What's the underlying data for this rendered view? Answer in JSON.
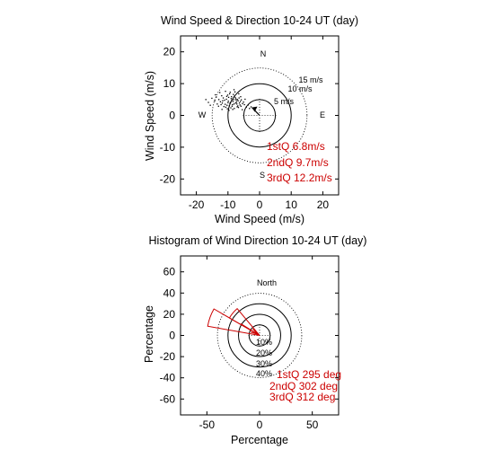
{
  "chart_data": [
    {
      "type": "scatter",
      "title": "Wind Speed & Direction 10-24 UT (day)",
      "xlabel": "Wind Speed (m/s)",
      "ylabel": "Wind Speed (m/s)",
      "xlim": [
        -25,
        25
      ],
      "ylim": [
        -25,
        25
      ],
      "xticks": [
        "-20",
        "-10",
        "0",
        "10",
        "20"
      ],
      "yticks": [
        "20",
        "10",
        "0",
        "-10",
        "-20"
      ],
      "xtick_values": [
        -20,
        -10,
        0,
        10,
        20
      ],
      "ytick_values": [
        20,
        10,
        0,
        -10,
        -20
      ],
      "rings": [
        {
          "radius": 5,
          "label": "5 m/s",
          "style": "solid"
        },
        {
          "radius": 10,
          "label": "10 m/s",
          "style": "solid"
        },
        {
          "radius": 15,
          "label": "15 m/s",
          "style": "dotted"
        }
      ],
      "compass": {
        "N": "N",
        "S": "S",
        "E": "E",
        "W": "W"
      },
      "mean_vector": [
        -2.4,
        2.5
      ],
      "points": [
        [
          -9.2,
          4.1
        ],
        [
          -8.1,
          3.6
        ],
        [
          -7.5,
          5.2
        ],
        [
          -10.3,
          3.2
        ],
        [
          -6.8,
          4.6
        ],
        [
          -8.7,
          2.9
        ],
        [
          -11.1,
          4.8
        ],
        [
          -7.9,
          6.1
        ],
        [
          -9.8,
          5.7
        ],
        [
          -6.2,
          3.3
        ],
        [
          -8.4,
          4.4
        ],
        [
          -10.7,
          2.6
        ],
        [
          -7.1,
          2.7
        ],
        [
          -9.4,
          3.8
        ],
        [
          -5.8,
          4.9
        ],
        [
          -8.9,
          5.9
        ],
        [
          -11.8,
          3.9
        ],
        [
          -7.6,
          3.9
        ],
        [
          -6.5,
          5.5
        ],
        [
          -9.9,
          4.5
        ],
        [
          -8.2,
          5.0
        ],
        [
          -10.1,
          6.4
        ],
        [
          -12.4,
          4.3
        ],
        [
          -7.3,
          4.2
        ],
        [
          -6.9,
          3.0
        ],
        [
          -9.1,
          2.4
        ],
        [
          -8.6,
          3.4
        ],
        [
          -10.5,
          5.1
        ],
        [
          -5.4,
          3.7
        ],
        [
          -11.5,
          5.5
        ],
        [
          -7.7,
          5.6
        ],
        [
          -9.5,
          6.8
        ],
        [
          -6.1,
          4.4
        ],
        [
          -8.0,
          2.2
        ],
        [
          -10.9,
          3.5
        ],
        [
          -7.2,
          3.6
        ],
        [
          -12.9,
          5.0
        ],
        [
          -9.6,
          3.0
        ],
        [
          -8.3,
          6.6
        ],
        [
          -6.7,
          2.5
        ],
        [
          -13.4,
          3.6
        ],
        [
          -10.0,
          4.0
        ],
        [
          -7.4,
          4.8
        ],
        [
          -9.0,
          5.3
        ],
        [
          -5.9,
          2.9
        ],
        [
          -11.3,
          2.8
        ],
        [
          -8.8,
          4.7
        ],
        [
          -6.4,
          3.9
        ],
        [
          -10.4,
          6.0
        ],
        [
          -7.0,
          5.0
        ],
        [
          -14.2,
          4.6
        ],
        [
          -12.0,
          6.2
        ],
        [
          -9.3,
          7.3
        ],
        [
          -4.8,
          3.4
        ],
        [
          -6.0,
          5.9
        ],
        [
          -11.7,
          4.6
        ],
        [
          -8.5,
          1.9
        ],
        [
          -13.0,
          2.9
        ],
        [
          -15.1,
          5.4
        ],
        [
          -4.2,
          2.6
        ],
        [
          -3.6,
          3.3
        ],
        [
          -5.1,
          4.2
        ],
        [
          -12.6,
          7.2
        ],
        [
          -16.2,
          4.1
        ],
        [
          -14.0,
          6.5
        ],
        [
          -10.8,
          7.6
        ],
        [
          -7.8,
          7.4
        ],
        [
          -9.7,
          1.6
        ],
        [
          -11.9,
          1.9
        ],
        [
          -4.6,
          5.1
        ],
        [
          -3.2,
          2.2
        ],
        [
          -6.6,
          6.8
        ],
        [
          -13.7,
          5.8
        ],
        [
          -15.6,
          3.2
        ],
        [
          -8.1,
          8.1
        ],
        [
          -5.5,
          1.8
        ],
        [
          -17.0,
          5.0
        ],
        [
          -2.7,
          2.7
        ],
        [
          -10.2,
          2.1
        ],
        [
          -12.2,
          3.4
        ]
      ],
      "annotations": [
        "1stQ 6.8m/s",
        "2ndQ 9.7m/s",
        "3rdQ 12.2m/s"
      ],
      "annotation_color": "#cc0000"
    },
    {
      "type": "polar-histogram",
      "title": "Histogram of Wind Direction 10-24 UT (day)",
      "xlabel": "Percentage",
      "ylabel": "Percentage",
      "xlim": [
        -75,
        75
      ],
      "ylim": [
        -75,
        75
      ],
      "xticks": [
        "-50",
        "0",
        "50"
      ],
      "yticks": [
        "60",
        "40",
        "20",
        "0",
        "-20",
        "-40",
        "-60"
      ],
      "xtick_values": [
        -50,
        0,
        50
      ],
      "ytick_values": [
        60,
        40,
        20,
        0,
        -20,
        -40,
        -60
      ],
      "rings": [
        {
          "radius": 10,
          "label": "10%",
          "style": "solid"
        },
        {
          "radius": 20,
          "label": "20%",
          "style": "solid"
        },
        {
          "radius": 30,
          "label": "30%",
          "style": "solid"
        },
        {
          "radius": 40,
          "label": "40%",
          "style": "dotted"
        }
      ],
      "north_label": "North",
      "bins": [
        {
          "from_deg": 280,
          "to_deg": 300,
          "percent": 50
        },
        {
          "from_deg": 300,
          "to_deg": 320,
          "percent": 33
        }
      ],
      "mean_direction_deg": 302,
      "annotations": [
        "1stQ 295 deg",
        "2ndQ 302 deg",
        "3rdQ 312 deg"
      ],
      "annotation_color": "#cc0000"
    }
  ]
}
